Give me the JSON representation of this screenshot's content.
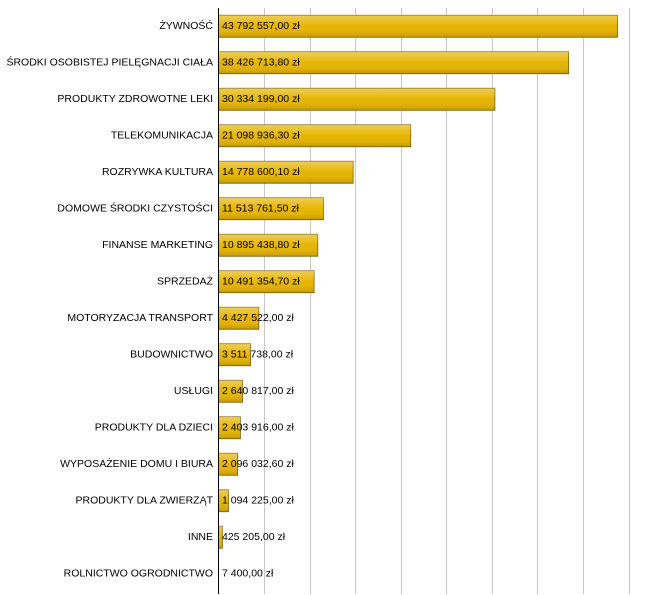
{
  "chart_data": {
    "type": "hbar",
    "categories": [
      "ŻYWNOŚĆ",
      "ŚRODKI OSOBISTEJ PIELĘGNACJI CIAŁA",
      "PRODUKTY ZDROWOTNE LEKI",
      "TELEKOMUNIKACJA",
      "ROZRYWKA KULTURA",
      "DOMOWE ŚRODKI CZYSTOŚCI",
      "FINANSE MARKETING",
      "SPRZEDAŻ",
      "MOTORYZACJA TRANSPORT",
      "BUDOWNICTWO",
      "USŁUGI",
      "PRODUKTY DLA DZIECI",
      "WYPOSAŻENIE DOMU I BIURA",
      "PRODUKTY DLA ZWIERZĄT",
      "INNE",
      "ROLNICTWO OGRODNICTWO"
    ],
    "values": [
      43792557.0,
      38426713.8,
      30334199.0,
      21098936.3,
      14778600.1,
      11513761.5,
      10895438.8,
      10491354.7,
      4427522.0,
      3511738.0,
      2640817.0,
      2403916.0,
      2096032.6,
      1094225.0,
      425205.0,
      7400.0
    ],
    "value_labels": [
      "43 792 557,00 zł",
      "38 426 713,80 zł",
      "30 334 199,00 zł",
      "21 098 936,30 zł",
      "14 778 600,10 zł",
      "11 513 761,50 zł",
      "10 895 438,80 zł",
      "10 491 354,70 zł",
      "4 427 522,00 zł",
      "3 511 738,00 zł",
      "2 640 817,00 zł",
      "2 403 916,00 zł",
      "2 096 032,60 zł",
      "1 094 225,00 zł",
      "425 205,00 zł",
      "7 400,00 zł"
    ],
    "color": "#e6b400",
    "xlim": [
      0,
      45000000
    ],
    "xticks": [
      5000000,
      10000000,
      15000000,
      20000000,
      25000000,
      30000000,
      35000000,
      40000000,
      45000000
    ],
    "grid": true
  }
}
